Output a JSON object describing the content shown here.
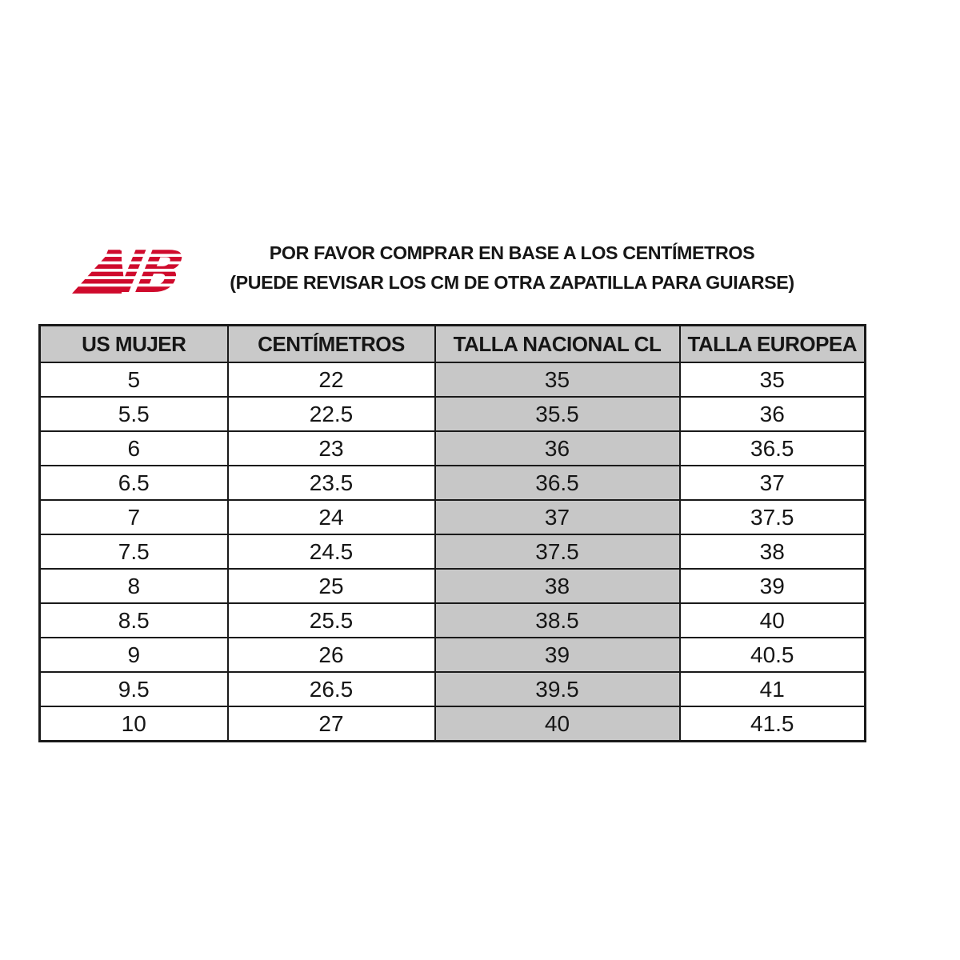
{
  "page": {
    "background": "#ffffff"
  },
  "header": {
    "logo": {
      "name": "new-balance-logo",
      "letters": "NB",
      "color": "#cf0a2c"
    },
    "title_line1": "POR FAVOR COMPRAR EN BASE A LOS CENTÍMETROS",
    "title_line2": "(PUEDE REVISAR LOS CM DE OTRA ZAPATILLA PARA GUIARSE)"
  },
  "table": {
    "columns": [
      "US MUJER",
      "CENTÍMETROS",
      "TALLA NACIONAL CL",
      "TALLA EUROPEA"
    ],
    "highlight_column_index": 2,
    "header_bg": "#c9c9c9",
    "highlight_bg": "#c7c7c7",
    "border_color": "#1a1a1a",
    "rows": [
      [
        "5",
        "22",
        "35",
        "35"
      ],
      [
        "5.5",
        "22.5",
        "35.5",
        "36"
      ],
      [
        "6",
        "23",
        "36",
        "36.5"
      ],
      [
        "6.5",
        "23.5",
        "36.5",
        "37"
      ],
      [
        "7",
        "24",
        "37",
        "37.5"
      ],
      [
        "7.5",
        "24.5",
        "37.5",
        "38"
      ],
      [
        "8",
        "25",
        "38",
        "39"
      ],
      [
        "8.5",
        "25.5",
        "38.5",
        "40"
      ],
      [
        "9",
        "26",
        "39",
        "40.5"
      ],
      [
        "9.5",
        "26.5",
        "39.5",
        "41"
      ],
      [
        "10",
        "27",
        "40",
        "41.5"
      ]
    ]
  }
}
